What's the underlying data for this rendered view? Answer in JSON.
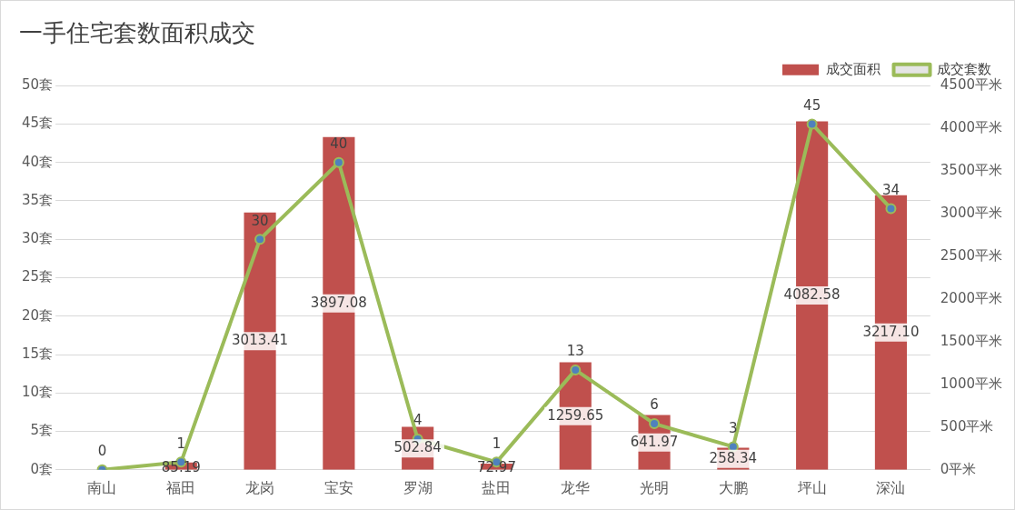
{
  "chart_data": {
    "type": "bar",
    "title": "一手住宅套数面积成交",
    "categories": [
      "南山",
      "福田",
      "龙岗",
      "宝安",
      "罗湖",
      "盐田",
      "龙华",
      "光明",
      "大鹏",
      "坪山",
      "深汕"
    ],
    "series": [
      {
        "name": "成交面积",
        "axis": "y2",
        "color": "#c0504d",
        "values": [
          0,
          85.19,
          3013.41,
          3897.08,
          502.84,
          72.97,
          1259.65,
          641.97,
          258.34,
          4082.58,
          3217.1
        ],
        "value_labels": [
          null,
          "85.19",
          "3013.41",
          "3897.08",
          "502.84",
          "72.97",
          "1259.65",
          "641.97",
          "258.34",
          "4082.58",
          "3217.10"
        ]
      },
      {
        "name": "成交套数",
        "type": "line",
        "color": "#9bbb59",
        "values": [
          0,
          1,
          30,
          40,
          4,
          1,
          13,
          6,
          3,
          45,
          34
        ],
        "value_labels": [
          "0",
          "1",
          "30",
          "40",
          "4",
          "1",
          "13",
          "6",
          "3",
          "45",
          "34"
        ]
      }
    ],
    "ylim": [
      0,
      50
    ],
    "yticks": [
      {
        "value": 0,
        "label": "0套"
      },
      {
        "value": 5,
        "label": "5套"
      },
      {
        "value": 10,
        "label": "10套"
      },
      {
        "value": 15,
        "label": "15套"
      },
      {
        "value": 20,
        "label": "20套"
      },
      {
        "value": 25,
        "label": "25套"
      },
      {
        "value": 30,
        "label": "30套"
      },
      {
        "value": 35,
        "label": "35套"
      },
      {
        "value": 40,
        "label": "40套"
      },
      {
        "value": 45,
        "label": "45套"
      },
      {
        "value": 50,
        "label": "50套"
      }
    ],
    "y2lim": [
      0,
      4500
    ],
    "y2ticks": [
      {
        "value": 0,
        "label": "0平米"
      },
      {
        "value": 500,
        "label": "500平米"
      },
      {
        "value": 1000,
        "label": "1000平米"
      },
      {
        "value": 1500,
        "label": "1500平米"
      },
      {
        "value": 2000,
        "label": "2000平米"
      },
      {
        "value": 2500,
        "label": "2500平米"
      },
      {
        "value": 3000,
        "label": "3000平米"
      },
      {
        "value": 3500,
        "label": "3500平米"
      },
      {
        "value": 4000,
        "label": "4000平米"
      },
      {
        "value": 4500,
        "label": "4500平米"
      }
    ],
    "grid": "y",
    "legend": "top right",
    "marker": "circle",
    "line_style": "solid"
  }
}
